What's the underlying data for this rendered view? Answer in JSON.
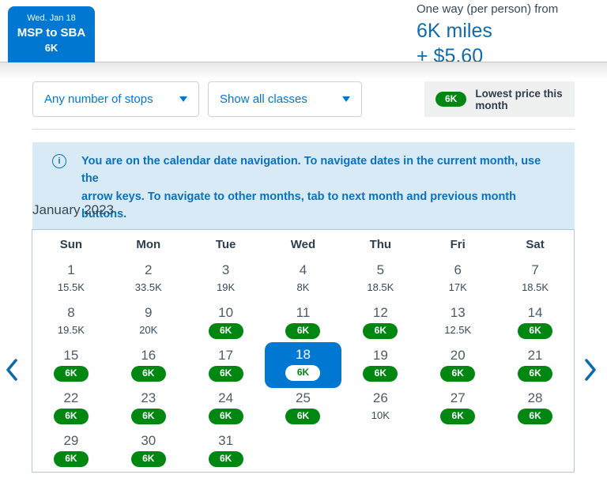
{
  "route_tab": {
    "date": "Wed. Jan 18",
    "route": "MSP to SBA",
    "price": "6K"
  },
  "price_summary": {
    "label": "One way (per person) from",
    "miles": "6K miles",
    "taxes": "+ $5.60"
  },
  "filters": {
    "stops": {
      "value": "Any number of stops"
    },
    "classes": {
      "value": "Show all classes"
    }
  },
  "legend": {
    "badge": "6K",
    "label": "Lowest price this month"
  },
  "banner": {
    "line1": "You are on the calendar date navigation. To navigate dates in the current month, use the",
    "line2": "arrow keys. To navigate to other months, tab to next month and previous month buttons."
  },
  "month_title": "January 2023",
  "calendar": {
    "day_headers": [
      "Sun",
      "Mon",
      "Tue",
      "Wed",
      "Thu",
      "Fri",
      "Sat"
    ],
    "start_offset": 0,
    "total_slots": 35,
    "cells": [
      {
        "day": 1,
        "price": "15.5K",
        "lowest": false,
        "selected": false
      },
      {
        "day": 2,
        "price": "33.5K",
        "lowest": false,
        "selected": false
      },
      {
        "day": 3,
        "price": "19K",
        "lowest": false,
        "selected": false
      },
      {
        "day": 4,
        "price": "8K",
        "lowest": false,
        "selected": false
      },
      {
        "day": 5,
        "price": "18.5K",
        "lowest": false,
        "selected": false
      },
      {
        "day": 6,
        "price": "17K",
        "lowest": false,
        "selected": false
      },
      {
        "day": 7,
        "price": "18.5K",
        "lowest": false,
        "selected": false
      },
      {
        "day": 8,
        "price": "19.5K",
        "lowest": false,
        "selected": false
      },
      {
        "day": 9,
        "price": "20K",
        "lowest": false,
        "selected": false
      },
      {
        "day": 10,
        "price": "6K",
        "lowest": true,
        "selected": false
      },
      {
        "day": 11,
        "price": "6K",
        "lowest": true,
        "selected": false
      },
      {
        "day": 12,
        "price": "6K",
        "lowest": true,
        "selected": false
      },
      {
        "day": 13,
        "price": "12.5K",
        "lowest": false,
        "selected": false
      },
      {
        "day": 14,
        "price": "6K",
        "lowest": true,
        "selected": false
      },
      {
        "day": 15,
        "price": "6K",
        "lowest": true,
        "selected": false
      },
      {
        "day": 16,
        "price": "6K",
        "lowest": true,
        "selected": false
      },
      {
        "day": 17,
        "price": "6K",
        "lowest": true,
        "selected": false
      },
      {
        "day": 18,
        "price": "6K",
        "lowest": true,
        "selected": true
      },
      {
        "day": 19,
        "price": "6K",
        "lowest": true,
        "selected": false
      },
      {
        "day": 20,
        "price": "6K",
        "lowest": true,
        "selected": false
      },
      {
        "day": 21,
        "price": "6K",
        "lowest": true,
        "selected": false
      },
      {
        "day": 22,
        "price": "6K",
        "lowest": true,
        "selected": false
      },
      {
        "day": 23,
        "price": "6K",
        "lowest": true,
        "selected": false
      },
      {
        "day": 24,
        "price": "6K",
        "lowest": true,
        "selected": false
      },
      {
        "day": 25,
        "price": "6K",
        "lowest": true,
        "selected": false
      },
      {
        "day": 26,
        "price": "10K",
        "lowest": false,
        "selected": false
      },
      {
        "day": 27,
        "price": "6K",
        "lowest": true,
        "selected": false
      },
      {
        "day": 28,
        "price": "6K",
        "lowest": true,
        "selected": false
      },
      {
        "day": 29,
        "price": "6K",
        "lowest": true,
        "selected": false
      },
      {
        "day": 30,
        "price": "6K",
        "lowest": true,
        "selected": false
      },
      {
        "day": 31,
        "price": "6K",
        "lowest": true,
        "selected": false
      }
    ]
  },
  "nav": {
    "prev": "previous month",
    "next": "next month"
  },
  "colors": {
    "brand_blue": "#0078d2",
    "link_blue": "#0f6bab",
    "lowest_green": "#008712",
    "banner_bg": "#d9eaf7",
    "calendar_border": "#b3c9d9",
    "dark_text": "#36495a"
  }
}
